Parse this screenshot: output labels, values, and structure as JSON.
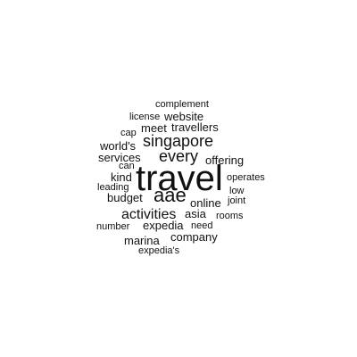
{
  "words": [
    {
      "text": "complement"
    },
    {
      "text": "license"
    },
    {
      "text": "website"
    },
    {
      "text": "cap"
    },
    {
      "text": "meet"
    },
    {
      "text": "travellers"
    },
    {
      "text": "world's"
    },
    {
      "text": "singapore"
    },
    {
      "text": "services"
    },
    {
      "text": "every"
    },
    {
      "text": "offering"
    },
    {
      "text": "can"
    },
    {
      "text": "kind"
    },
    {
      "text": "travel"
    },
    {
      "text": "operates"
    },
    {
      "text": "leading"
    },
    {
      "text": "low"
    },
    {
      "text": "budget"
    },
    {
      "text": "aae"
    },
    {
      "text": "joint"
    },
    {
      "text": "online"
    },
    {
      "text": "activities"
    },
    {
      "text": "asia"
    },
    {
      "text": "rooms"
    },
    {
      "text": "expedia"
    },
    {
      "text": "number"
    },
    {
      "text": "need"
    },
    {
      "text": "company"
    },
    {
      "text": "marina"
    },
    {
      "text": "expedia's"
    }
  ],
  "colors": {
    "background": "#ffffff",
    "text": "#111111"
  }
}
